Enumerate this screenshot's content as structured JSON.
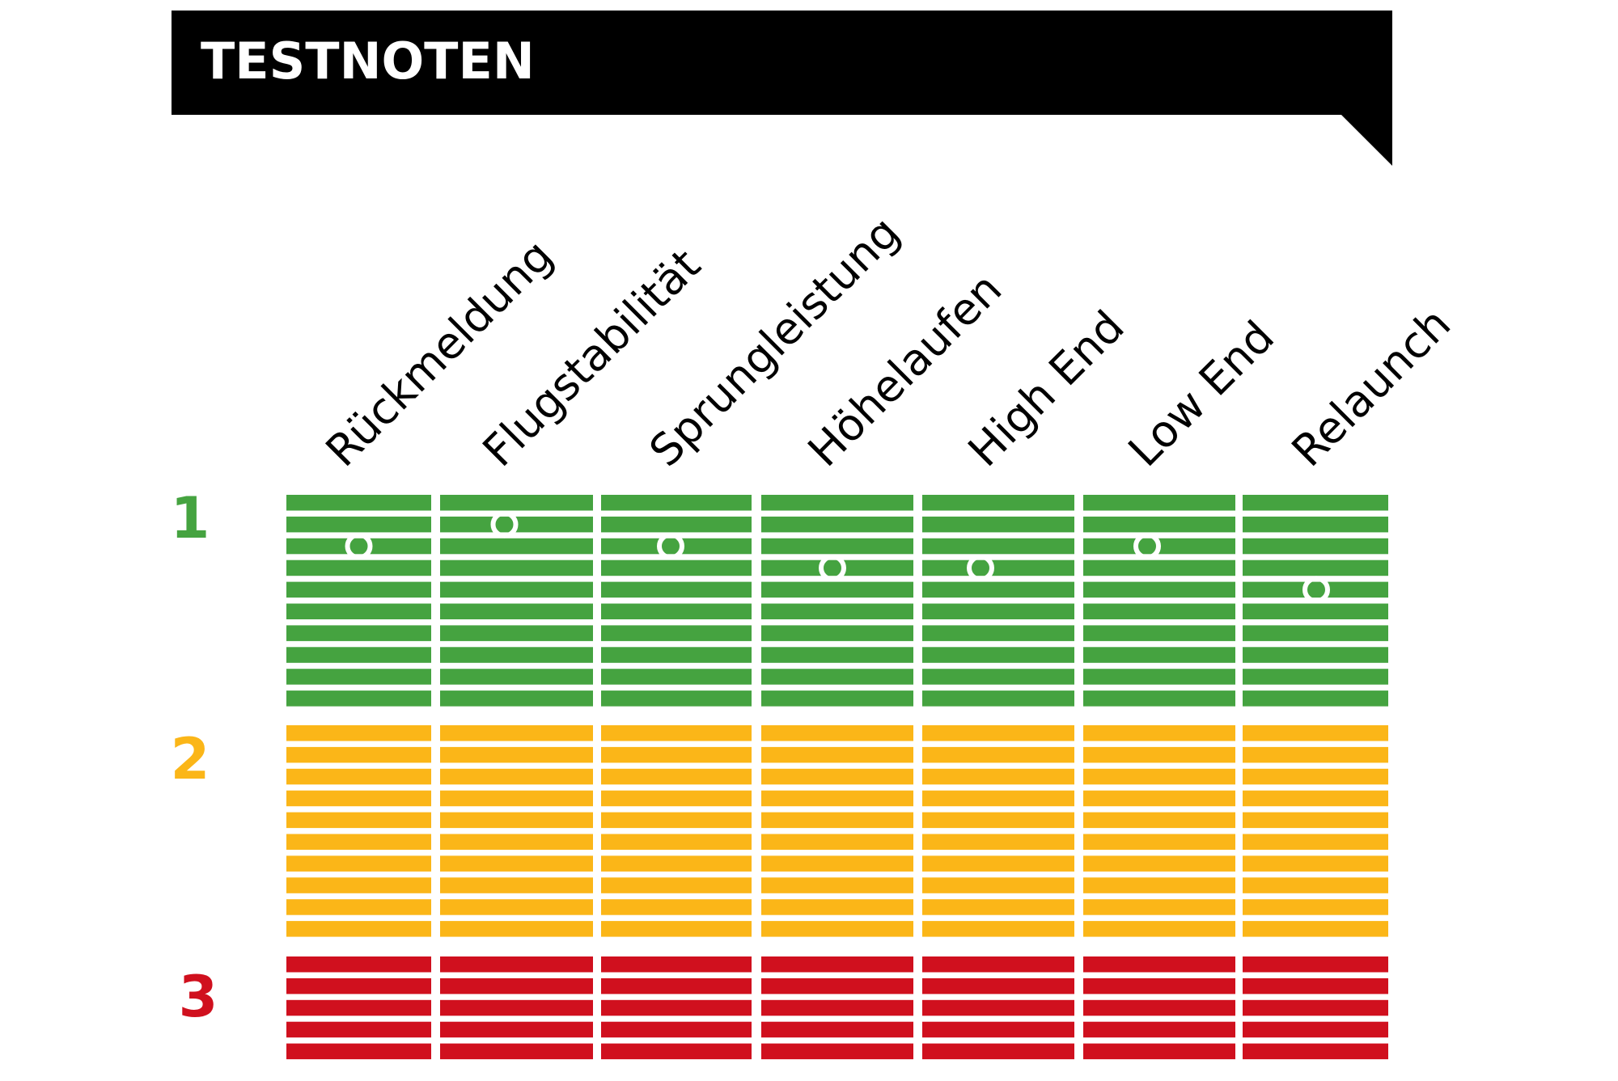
{
  "title": "TESTNOTEN",
  "colors": {
    "title_bar": "#000000",
    "title_text": "#ffffff",
    "grade_1": "#45a340",
    "grade_2": "#fbb618",
    "grade_3": "#d0101e",
    "marker": "#ffffff"
  },
  "chart_data": {
    "type": "scatter",
    "title": "TESTNOTEN",
    "categories": [
      "Rückmeldung",
      "Flugstabilität",
      "Sprungleistung",
      "Höhelaufen",
      "High End",
      "Low End",
      "Relaunch"
    ],
    "grades": [
      {
        "label": "1",
        "color": "#45a340",
        "steps": 10
      },
      {
        "label": "2",
        "color": "#fbb618",
        "steps": 10
      },
      {
        "label": "3",
        "color": "#d0101e",
        "steps": 5
      }
    ],
    "series": [
      {
        "values": [
          1.2,
          1.1,
          1.2,
          1.3,
          1.3,
          1.2,
          1.4
        ]
      }
    ],
    "ylim": [
      1.0,
      3.5
    ],
    "y_reversed": true
  }
}
